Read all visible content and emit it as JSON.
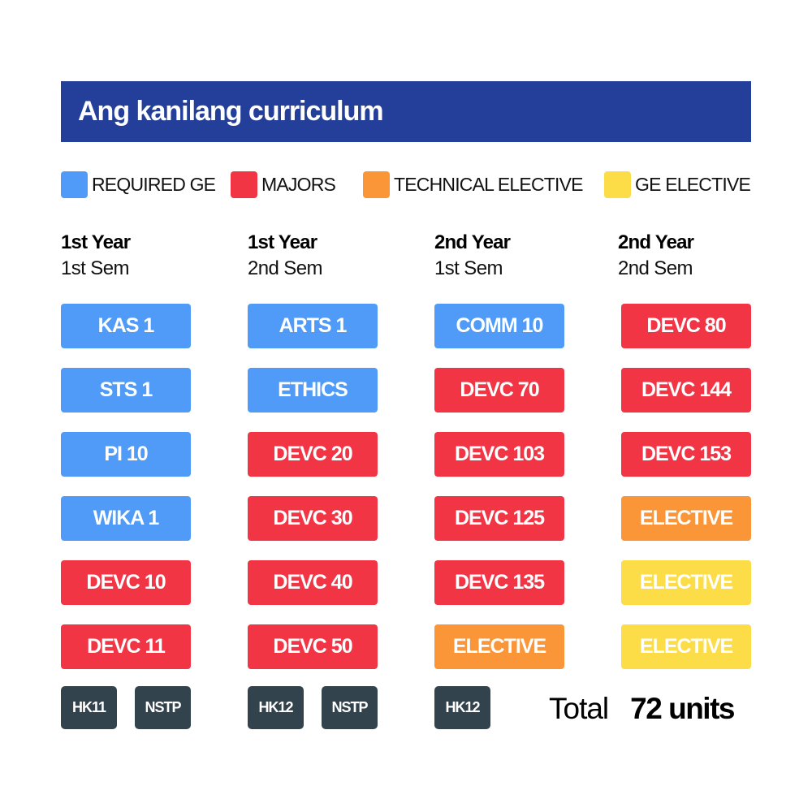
{
  "title": "Ang kanilang curriculum",
  "legend": [
    {
      "label": "REQUIRED GE",
      "color": "#4f9bf7"
    },
    {
      "label": "MAJORS",
      "color": "#f23545"
    },
    {
      "label": "TECHNICAL ELECTIVE",
      "color": "#fa9538"
    },
    {
      "label": "GE ELECTIVE",
      "color": "#fcdc47"
    }
  ],
  "colors": {
    "required_ge": "#4f9bf7",
    "majors": "#f23545",
    "technical_elective": "#fa9538",
    "ge_elective": "#fcdc47",
    "pe_nstp": "#33434d"
  },
  "semesters": [
    {
      "year": "1st Year",
      "sem": "1st Sem",
      "courses": [
        {
          "code": "KAS 1",
          "category": "required_ge"
        },
        {
          "code": "STS 1",
          "category": "required_ge"
        },
        {
          "code": "PI 10",
          "category": "required_ge"
        },
        {
          "code": "WIKA 1",
          "category": "required_ge"
        },
        {
          "code": "DEVC 10",
          "category": "majors"
        },
        {
          "code": "DEVC 11",
          "category": "majors"
        }
      ],
      "extras": [
        "HK11",
        "NSTP"
      ]
    },
    {
      "year": "1st Year",
      "sem": "2nd Sem",
      "courses": [
        {
          "code": "ARTS 1",
          "category": "required_ge"
        },
        {
          "code": "ETHICS",
          "category": "required_ge"
        },
        {
          "code": "DEVC 20",
          "category": "majors"
        },
        {
          "code": "DEVC 30",
          "category": "majors"
        },
        {
          "code": "DEVC 40",
          "category": "majors"
        },
        {
          "code": "DEVC 50",
          "category": "majors"
        }
      ],
      "extras": [
        "HK12",
        "NSTP"
      ]
    },
    {
      "year": "2nd Year",
      "sem": "1st Sem",
      "courses": [
        {
          "code": "COMM 10",
          "category": "required_ge"
        },
        {
          "code": "DEVC 70",
          "category": "majors"
        },
        {
          "code": "DEVC 103",
          "category": "majors"
        },
        {
          "code": "DEVC 125",
          "category": "majors"
        },
        {
          "code": "DEVC 135",
          "category": "majors"
        },
        {
          "code": "ELECTIVE",
          "category": "technical_elective"
        }
      ],
      "extras": [
        "HK12"
      ]
    },
    {
      "year": "2nd Year",
      "sem": "2nd Sem",
      "courses": [
        {
          "code": "DEVC 80",
          "category": "majors"
        },
        {
          "code": "DEVC 144",
          "category": "majors"
        },
        {
          "code": "DEVC 153",
          "category": "majors"
        },
        {
          "code": "ELECTIVE",
          "category": "technical_elective"
        },
        {
          "code": "ELECTIVE",
          "category": "ge_elective"
        },
        {
          "code": "ELECTIVE",
          "category": "ge_elective"
        }
      ],
      "extras": []
    }
  ],
  "total": {
    "label": "Total",
    "value": "72 units"
  }
}
